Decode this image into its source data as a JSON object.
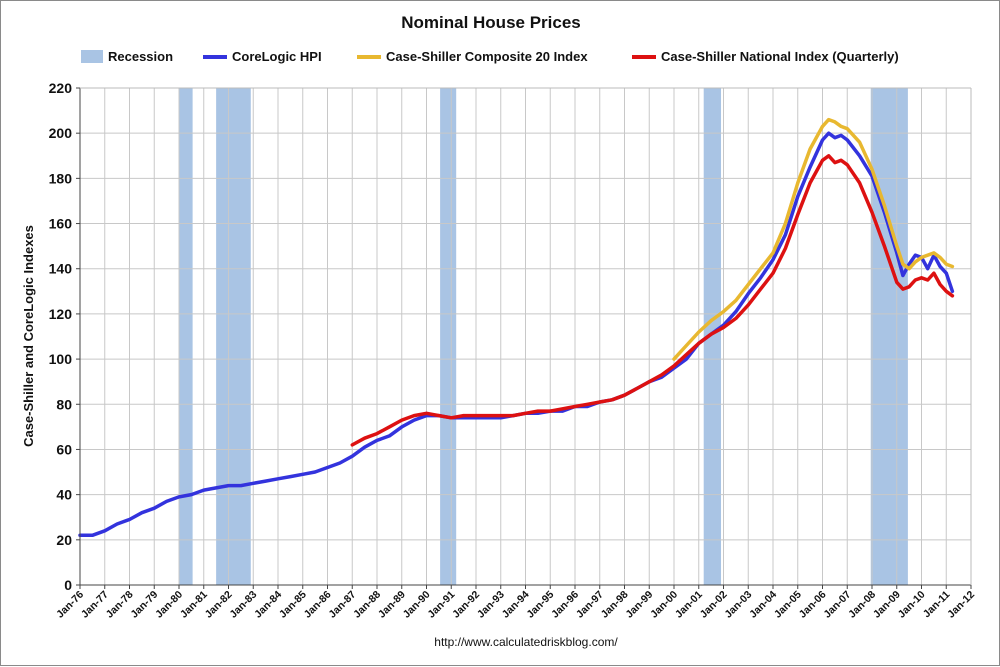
{
  "chart_data": {
    "type": "line",
    "title": "Nominal House Prices",
    "xlabel": "",
    "ylabel": "Case-Shiller and CoreLogic Indexes",
    "ylim": [
      0,
      220
    ],
    "xlim": [
      1976.0,
      2012.0
    ],
    "yticks": [
      0,
      20,
      40,
      60,
      80,
      100,
      120,
      140,
      160,
      180,
      200,
      220
    ],
    "xtick_labels": [
      "Jan-76",
      "Jan-77",
      "Jan-78",
      "Jan-79",
      "Jan-80",
      "Jan-81",
      "Jan-82",
      "Jan-83",
      "Jan-84",
      "Jan-85",
      "Jan-86",
      "Jan-87",
      "Jan-88",
      "Jan-89",
      "Jan-90",
      "Jan-91",
      "Jan-92",
      "Jan-93",
      "Jan-94",
      "Jan-95",
      "Jan-96",
      "Jan-97",
      "Jan-98",
      "Jan-99",
      "Jan-00",
      "Jan-01",
      "Jan-02",
      "Jan-03",
      "Jan-04",
      "Jan-05",
      "Jan-06",
      "Jan-07",
      "Jan-08",
      "Jan-09",
      "Jan-10",
      "Jan-11",
      "Jan-12"
    ],
    "grid": true,
    "legend_position": "top",
    "source_note": "http://www.calculatedriskblog.com/",
    "recession_label": "Recession",
    "recessions": [
      {
        "start": 1980.0,
        "end": 1980.55
      },
      {
        "start": 1981.5,
        "end": 1982.9
      },
      {
        "start": 1990.55,
        "end": 1991.2
      },
      {
        "start": 2001.2,
        "end": 2001.9
      },
      {
        "start": 2007.95,
        "end": 2009.45
      }
    ],
    "series": [
      {
        "name": "CoreLogic HPI",
        "color": "#3333dd",
        "x": [
          1976.0,
          1976.5,
          1977.0,
          1977.5,
          1978.0,
          1978.5,
          1979.0,
          1979.5,
          1980.0,
          1980.5,
          1981.0,
          1981.5,
          1982.0,
          1982.5,
          1983.0,
          1983.5,
          1984.0,
          1984.5,
          1985.0,
          1985.5,
          1986.0,
          1986.5,
          1987.0,
          1987.5,
          1988.0,
          1988.5,
          1989.0,
          1989.5,
          1990.0,
          1990.5,
          1991.0,
          1991.5,
          1992.0,
          1992.5,
          1993.0,
          1993.5,
          1994.0,
          1994.5,
          1995.0,
          1995.5,
          1996.0,
          1996.5,
          1997.0,
          1997.5,
          1998.0,
          1998.5,
          1999.0,
          1999.5,
          2000.0,
          2000.5,
          2001.0,
          2001.5,
          2002.0,
          2002.5,
          2003.0,
          2003.5,
          2004.0,
          2004.5,
          2005.0,
          2005.5,
          2006.0,
          2006.25,
          2006.5,
          2006.75,
          2007.0,
          2007.5,
          2008.0,
          2008.5,
          2009.0,
          2009.25,
          2009.5,
          2009.75,
          2010.0,
          2010.25,
          2010.5,
          2010.75,
          2011.0,
          2011.25
        ],
        "values": [
          22,
          22,
          24,
          27,
          29,
          32,
          34,
          37,
          39,
          40,
          42,
          43,
          44,
          44,
          45,
          46,
          47,
          48,
          49,
          50,
          52,
          54,
          57,
          61,
          64,
          66,
          70,
          73,
          75,
          75,
          74,
          74,
          74,
          74,
          74,
          75,
          76,
          76,
          77,
          77,
          79,
          79,
          81,
          82,
          84,
          87,
          90,
          92,
          96,
          100,
          107,
          111,
          115,
          121,
          129,
          136,
          144,
          155,
          172,
          185,
          197,
          200,
          198,
          199,
          197,
          190,
          181,
          165,
          147,
          137,
          142,
          146,
          145,
          140,
          146,
          141,
          138,
          130
        ]
      },
      {
        "name": "Case-Shiller Composite 20 Index",
        "color": "#e8b830",
        "x": [
          2000.0,
          2000.5,
          2001.0,
          2001.5,
          2002.0,
          2002.5,
          2003.0,
          2003.5,
          2004.0,
          2004.5,
          2005.0,
          2005.5,
          2006.0,
          2006.25,
          2006.5,
          2006.75,
          2007.0,
          2007.5,
          2008.0,
          2008.5,
          2009.0,
          2009.25,
          2009.5,
          2009.75,
          2010.0,
          2010.25,
          2010.5,
          2010.75,
          2011.0,
          2011.25
        ],
        "values": [
          100,
          106,
          112,
          117,
          121,
          126,
          133,
          140,
          147,
          160,
          178,
          193,
          203,
          206,
          205,
          203,
          202,
          196,
          184,
          168,
          150,
          142,
          140,
          143,
          145,
          146,
          147,
          145,
          142,
          141
        ]
      },
      {
        "name": "Case-Shiller National Index (Quarterly)",
        "color": "#dd1111",
        "x": [
          1987.0,
          1987.5,
          1988.0,
          1988.5,
          1989.0,
          1989.5,
          1990.0,
          1990.5,
          1991.0,
          1991.5,
          1992.0,
          1992.5,
          1993.0,
          1993.5,
          1994.0,
          1994.5,
          1995.0,
          1995.5,
          1996.0,
          1996.5,
          1997.0,
          1997.5,
          1998.0,
          1998.5,
          1999.0,
          1999.5,
          2000.0,
          2000.5,
          2001.0,
          2001.5,
          2002.0,
          2002.5,
          2003.0,
          2003.5,
          2004.0,
          2004.5,
          2005.0,
          2005.5,
          2006.0,
          2006.25,
          2006.5,
          2006.75,
          2007.0,
          2007.5,
          2008.0,
          2008.5,
          2009.0,
          2009.25,
          2009.5,
          2009.75,
          2010.0,
          2010.25,
          2010.5,
          2010.75,
          2011.0,
          2011.25
        ],
        "values": [
          62,
          65,
          67,
          70,
          73,
          75,
          76,
          75,
          74,
          75,
          75,
          75,
          75,
          75,
          76,
          77,
          77,
          78,
          79,
          80,
          81,
          82,
          84,
          87,
          90,
          93,
          97,
          102,
          107,
          111,
          114,
          118,
          124,
          131,
          138,
          149,
          164,
          178,
          188,
          190,
          187,
          188,
          186,
          178,
          165,
          150,
          134,
          131,
          132,
          135,
          136,
          135,
          138,
          133,
          130,
          128
        ]
      }
    ]
  }
}
